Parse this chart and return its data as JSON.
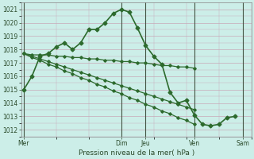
{
  "title": "",
  "xlabel": "Pression niveau de la mer( hPa )",
  "ylabel": "",
  "bg_color": "#cceee8",
  "grid_color": "#c8a8b8",
  "line_color": "#2d6a2d",
  "ylim": [
    1011.5,
    1021.5
  ],
  "yticks": [
    1012,
    1013,
    1014,
    1015,
    1016,
    1017,
    1018,
    1019,
    1020,
    1021
  ],
  "xtick_labels": [
    "Mer",
    "Dim",
    "Jeu",
    "Ven",
    "Sam"
  ],
  "xtick_positions": [
    0,
    12,
    15,
    21,
    27
  ],
  "vlines": [
    0,
    12,
    15,
    21,
    27
  ],
  "xlim": [
    -0.3,
    28.0
  ],
  "series0_x": [
    0,
    1,
    2,
    3,
    4,
    5,
    6,
    7,
    8,
    9,
    10,
    11,
    12,
    13,
    14,
    15,
    16,
    17,
    18,
    19,
    20,
    21,
    22,
    23,
    24,
    25,
    26
  ],
  "series0_y": [
    1015.0,
    1016.0,
    1017.5,
    1017.7,
    1018.2,
    1018.5,
    1018.0,
    1018.5,
    1019.5,
    1019.5,
    1020.0,
    1020.7,
    1021.0,
    1020.8,
    1019.6,
    1018.3,
    1017.5,
    1016.9,
    1014.8,
    1014.0,
    1014.2,
    1013.1,
    1012.4,
    1012.3,
    1012.4,
    1012.9,
    1013.0
  ],
  "series1_x": [
    0,
    1,
    2,
    3,
    4,
    5,
    6,
    7,
    8,
    9,
    10,
    11,
    12,
    13,
    14,
    15,
    16,
    17,
    18,
    19,
    20,
    21
  ],
  "series1_y": [
    1017.7,
    1017.6,
    1017.6,
    1017.6,
    1017.5,
    1017.5,
    1017.4,
    1017.4,
    1017.3,
    1017.3,
    1017.2,
    1017.2,
    1017.1,
    1017.1,
    1017.0,
    1017.0,
    1016.9,
    1016.8,
    1016.8,
    1016.7,
    1016.7,
    1016.6
  ],
  "series2_x": [
    0,
    1,
    2,
    3,
    4,
    5,
    6,
    7,
    8,
    9,
    10,
    11,
    12,
    13,
    14,
    15,
    16,
    17,
    18,
    19,
    20,
    21
  ],
  "series2_y": [
    1017.7,
    1017.5,
    1017.3,
    1017.1,
    1016.9,
    1016.7,
    1016.5,
    1016.3,
    1016.1,
    1015.9,
    1015.7,
    1015.5,
    1015.3,
    1015.1,
    1014.9,
    1014.7,
    1014.5,
    1014.3,
    1014.1,
    1013.9,
    1013.7,
    1013.5
  ],
  "series3_x": [
    0,
    1,
    2,
    3,
    4,
    5,
    6,
    7,
    8,
    9,
    10,
    11,
    12,
    13,
    14,
    15,
    16,
    17,
    18,
    19,
    20,
    21
  ],
  "series3_y": [
    1017.7,
    1017.4,
    1017.2,
    1016.9,
    1016.7,
    1016.4,
    1016.2,
    1015.9,
    1015.7,
    1015.4,
    1015.2,
    1014.9,
    1014.7,
    1014.4,
    1014.2,
    1013.9,
    1013.7,
    1013.4,
    1013.2,
    1012.9,
    1012.7,
    1012.4
  ]
}
